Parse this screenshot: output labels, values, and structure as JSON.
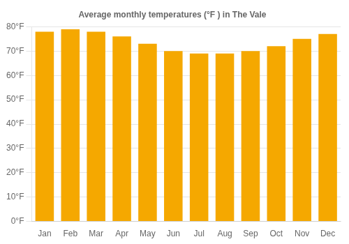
{
  "chart_data": {
    "type": "bar",
    "title": "Average monthly temperatures (°F ) in The Vale",
    "categories": [
      "Jan",
      "Feb",
      "Mar",
      "Apr",
      "May",
      "Jun",
      "Jul",
      "Aug",
      "Sep",
      "Oct",
      "Nov",
      "Dec"
    ],
    "values": [
      78,
      79,
      78,
      76,
      73,
      70,
      69,
      69,
      70,
      72,
      75,
      77
    ],
    "color": "#F5A800",
    "ylim": [
      0,
      80
    ],
    "yticks": [
      {
        "value": 0,
        "label": "0°F"
      },
      {
        "value": 10,
        "label": "10°F"
      },
      {
        "value": 20,
        "label": "20°F"
      },
      {
        "value": 30,
        "label": "30°F"
      },
      {
        "value": 40,
        "label": "40°F"
      },
      {
        "value": 50,
        "label": "50°F"
      },
      {
        "value": 60,
        "label": "60°F"
      },
      {
        "value": 70,
        "label": "70°F"
      },
      {
        "value": 80,
        "label": "80°F"
      }
    ],
    "grid": true
  }
}
